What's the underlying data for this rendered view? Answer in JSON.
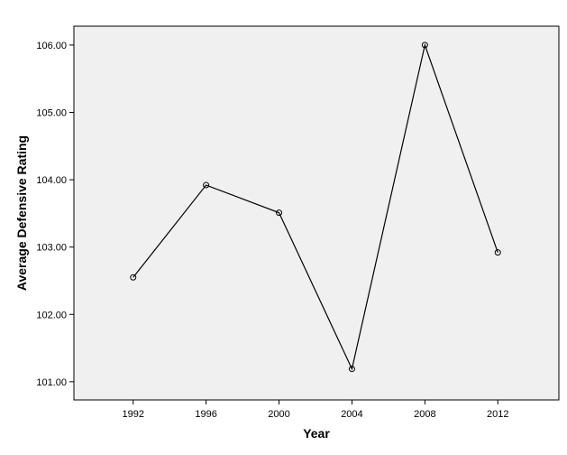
{
  "chart_data": {
    "type": "line",
    "x_label": "Year",
    "y_label": "Average Defensive Rating",
    "x": [
      1992,
      1996,
      2000,
      2004,
      2008,
      2012
    ],
    "series": [
      {
        "color": "#000000",
        "values": [
          102.55,
          103.92,
          103.51,
          101.19,
          106.0,
          102.92
        ]
      }
    ],
    "xlim": [
      1988.75,
      2015.35
    ],
    "xticks": [
      1992,
      1996,
      2000,
      2004,
      2008,
      2012
    ],
    "ylim": [
      100.73,
      106.28
    ],
    "yticks": [
      {
        "value": 101,
        "label": "101.00"
      },
      {
        "value": 102,
        "label": "102.00"
      },
      {
        "value": 103,
        "label": "103.00"
      },
      {
        "value": 104,
        "label": "104.00"
      },
      {
        "value": 105,
        "label": "105.00"
      },
      {
        "value": 106,
        "label": "106.00"
      }
    ],
    "background": "#f0f0f0"
  }
}
